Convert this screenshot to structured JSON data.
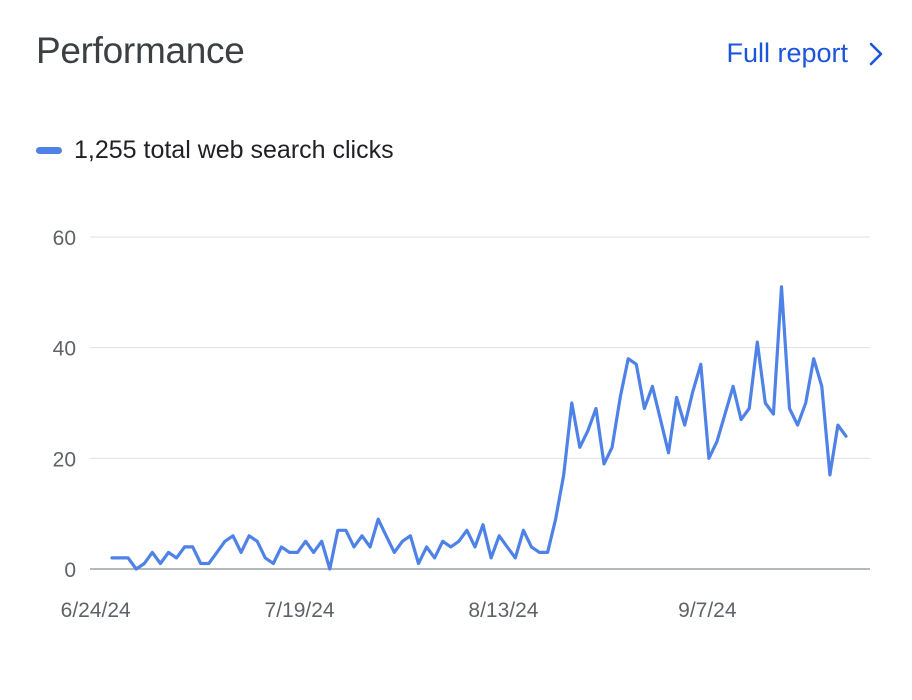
{
  "header": {
    "title": "Performance",
    "full_report_label": "Full report",
    "full_report_icon": "chevron-right-icon"
  },
  "legend": {
    "label": "1,255 total web search clicks",
    "color": "#4f82e6"
  },
  "colors": {
    "accent": "#1a56db",
    "series": "#4f82e6",
    "grid": "#e0e0e0",
    "axis": "#5f6368"
  },
  "chart_data": {
    "type": "line",
    "title": "",
    "xlabel": "",
    "ylabel": "",
    "ylim": [
      0,
      60
    ],
    "yticks": [
      "0",
      "20",
      "40",
      "60"
    ],
    "xticks": [
      "6/24/24",
      "7/19/24",
      "8/13/24",
      "9/7/24"
    ],
    "grid": true,
    "legend_position": "top-left",
    "series": [
      {
        "name": "1,255 total web search clicks",
        "x_start": "2024-06-26",
        "x_end": "2024-09-24",
        "values": [
          2,
          2,
          2,
          0,
          1,
          3,
          1,
          3,
          2,
          4,
          4,
          1,
          1,
          3,
          5,
          6,
          3,
          6,
          5,
          2,
          1,
          4,
          3,
          3,
          5,
          3,
          5,
          0,
          7,
          7,
          4,
          6,
          4,
          9,
          6,
          3,
          5,
          6,
          1,
          4,
          2,
          5,
          4,
          5,
          7,
          4,
          8,
          2,
          6,
          4,
          2,
          7,
          4,
          3,
          3,
          9,
          17,
          30,
          22,
          25,
          29,
          19,
          22,
          31,
          38,
          37,
          29,
          33,
          27,
          21,
          31,
          26,
          32,
          37,
          20,
          23,
          28,
          33,
          27,
          29,
          41,
          30,
          28,
          51,
          29,
          26,
          30,
          38,
          33,
          17,
          26,
          24
        ]
      }
    ]
  }
}
